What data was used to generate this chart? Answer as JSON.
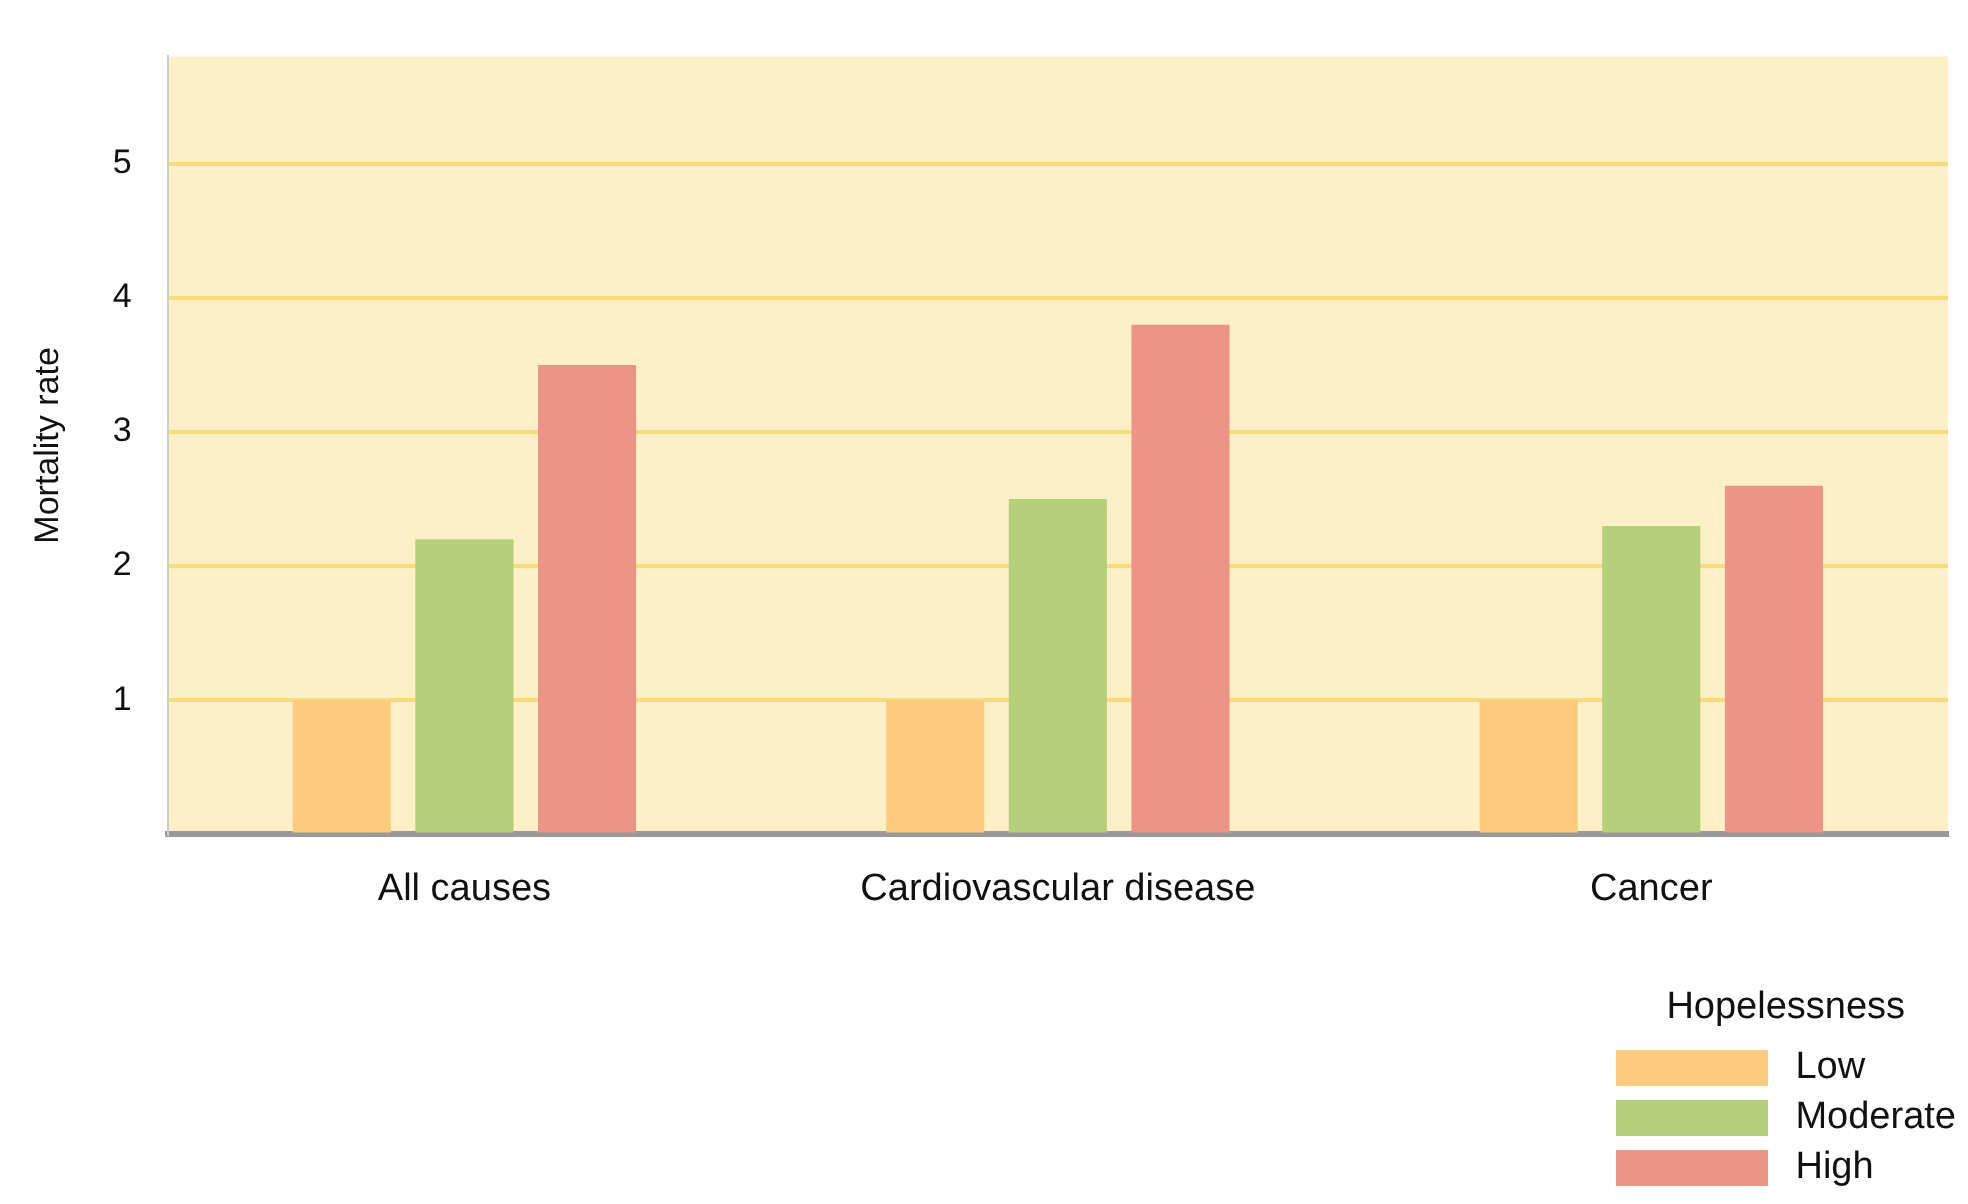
{
  "chart_data": {
    "type": "bar",
    "ylabel": "Mortality rate",
    "legend_title": "Hopelessness",
    "categories": [
      "All causes",
      "Cardiovascular disease",
      "Cancer"
    ],
    "series": [
      {
        "name": "Low",
        "color": "#fccb80",
        "values": [
          1,
          1,
          1
        ]
      },
      {
        "name": "Moderate",
        "color": "#b5cf7a",
        "values": [
          2.2,
          2.5,
          2.3
        ]
      },
      {
        "name": "High",
        "color": "#ec9486",
        "values": [
          3.5,
          3.8,
          2.6
        ]
      }
    ],
    "ylim": [
      0,
      5.8
    ],
    "yticks": [
      {
        "value": 0,
        "label": null
      },
      1,
      2,
      3,
      4,
      5
    ],
    "grid": "y",
    "legend": "bottom right"
  }
}
